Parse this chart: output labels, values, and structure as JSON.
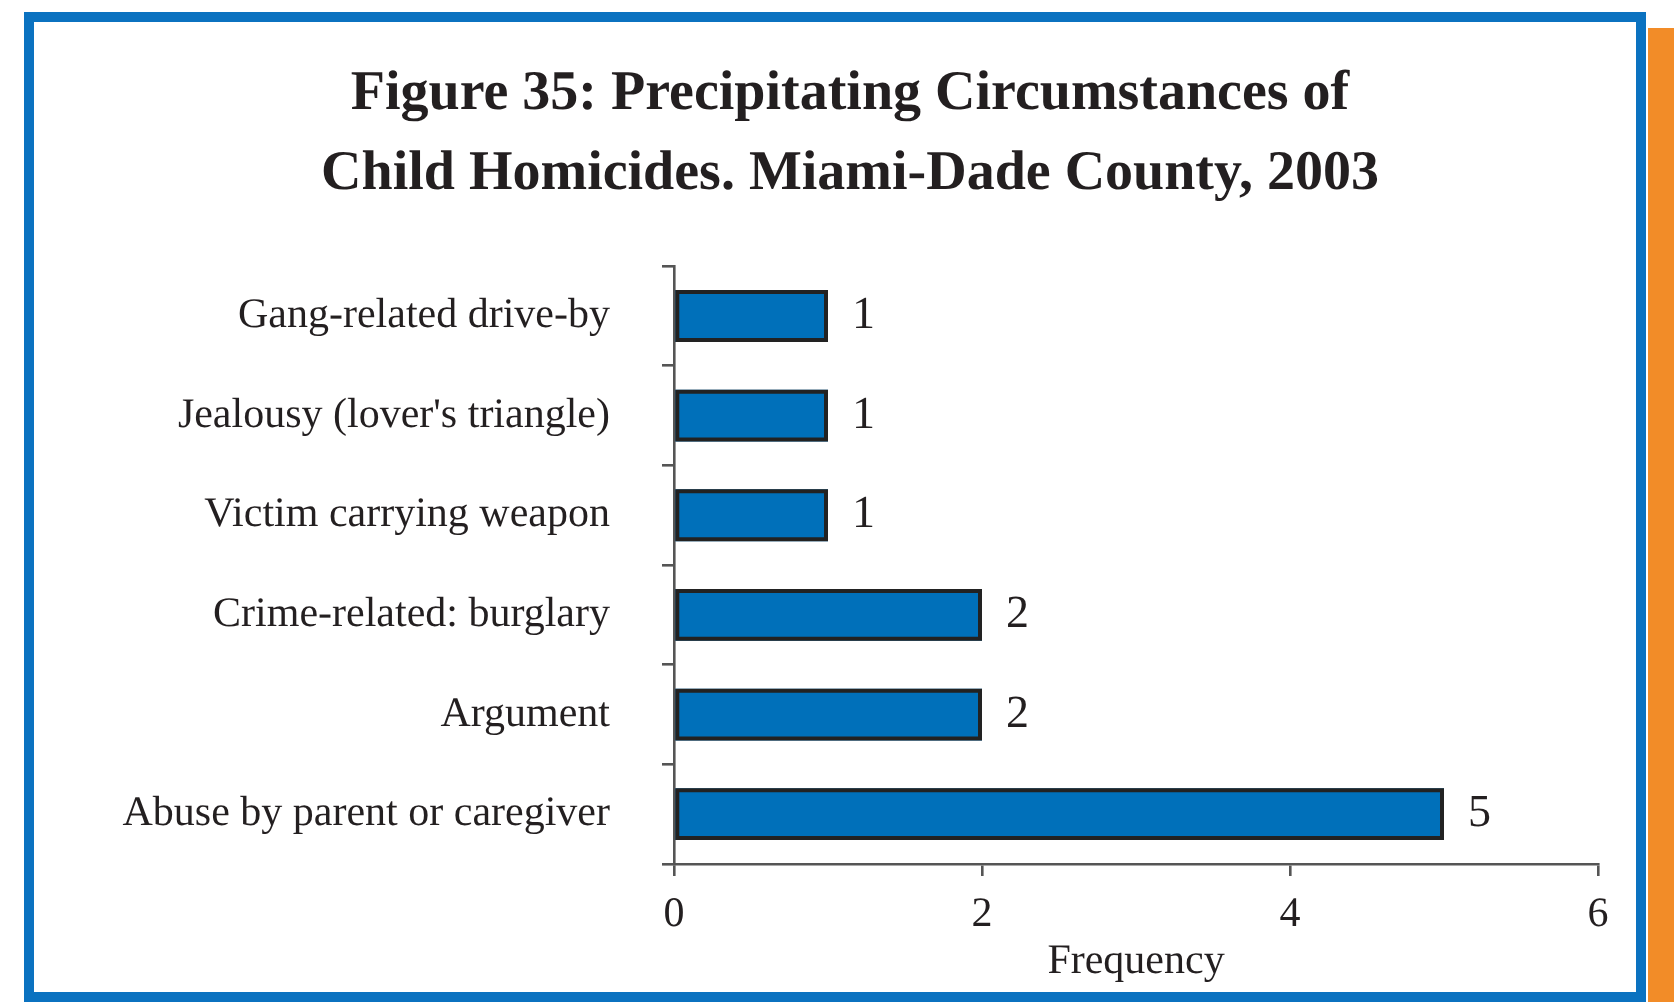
{
  "chart_data": {
    "type": "bar",
    "orientation": "horizontal",
    "title": "Figure 35: Precipitating Circumstances of Child Homicides. Miami-Dade County, 2003",
    "xlabel": "Frequency",
    "categories": [
      "Gang-related drive-by",
      "Jealousy (lover's triangle)",
      "Victim carrying weapon",
      "Crime-related: burglary",
      "Argument",
      "Abuse by parent or caregiver"
    ],
    "values": [
      1,
      1,
      1,
      2,
      2,
      5
    ],
    "color": "#0070ba",
    "xlim": [
      0,
      6
    ],
    "xticks": [
      0,
      2,
      4,
      6
    ],
    "data_labels": true
  }
}
